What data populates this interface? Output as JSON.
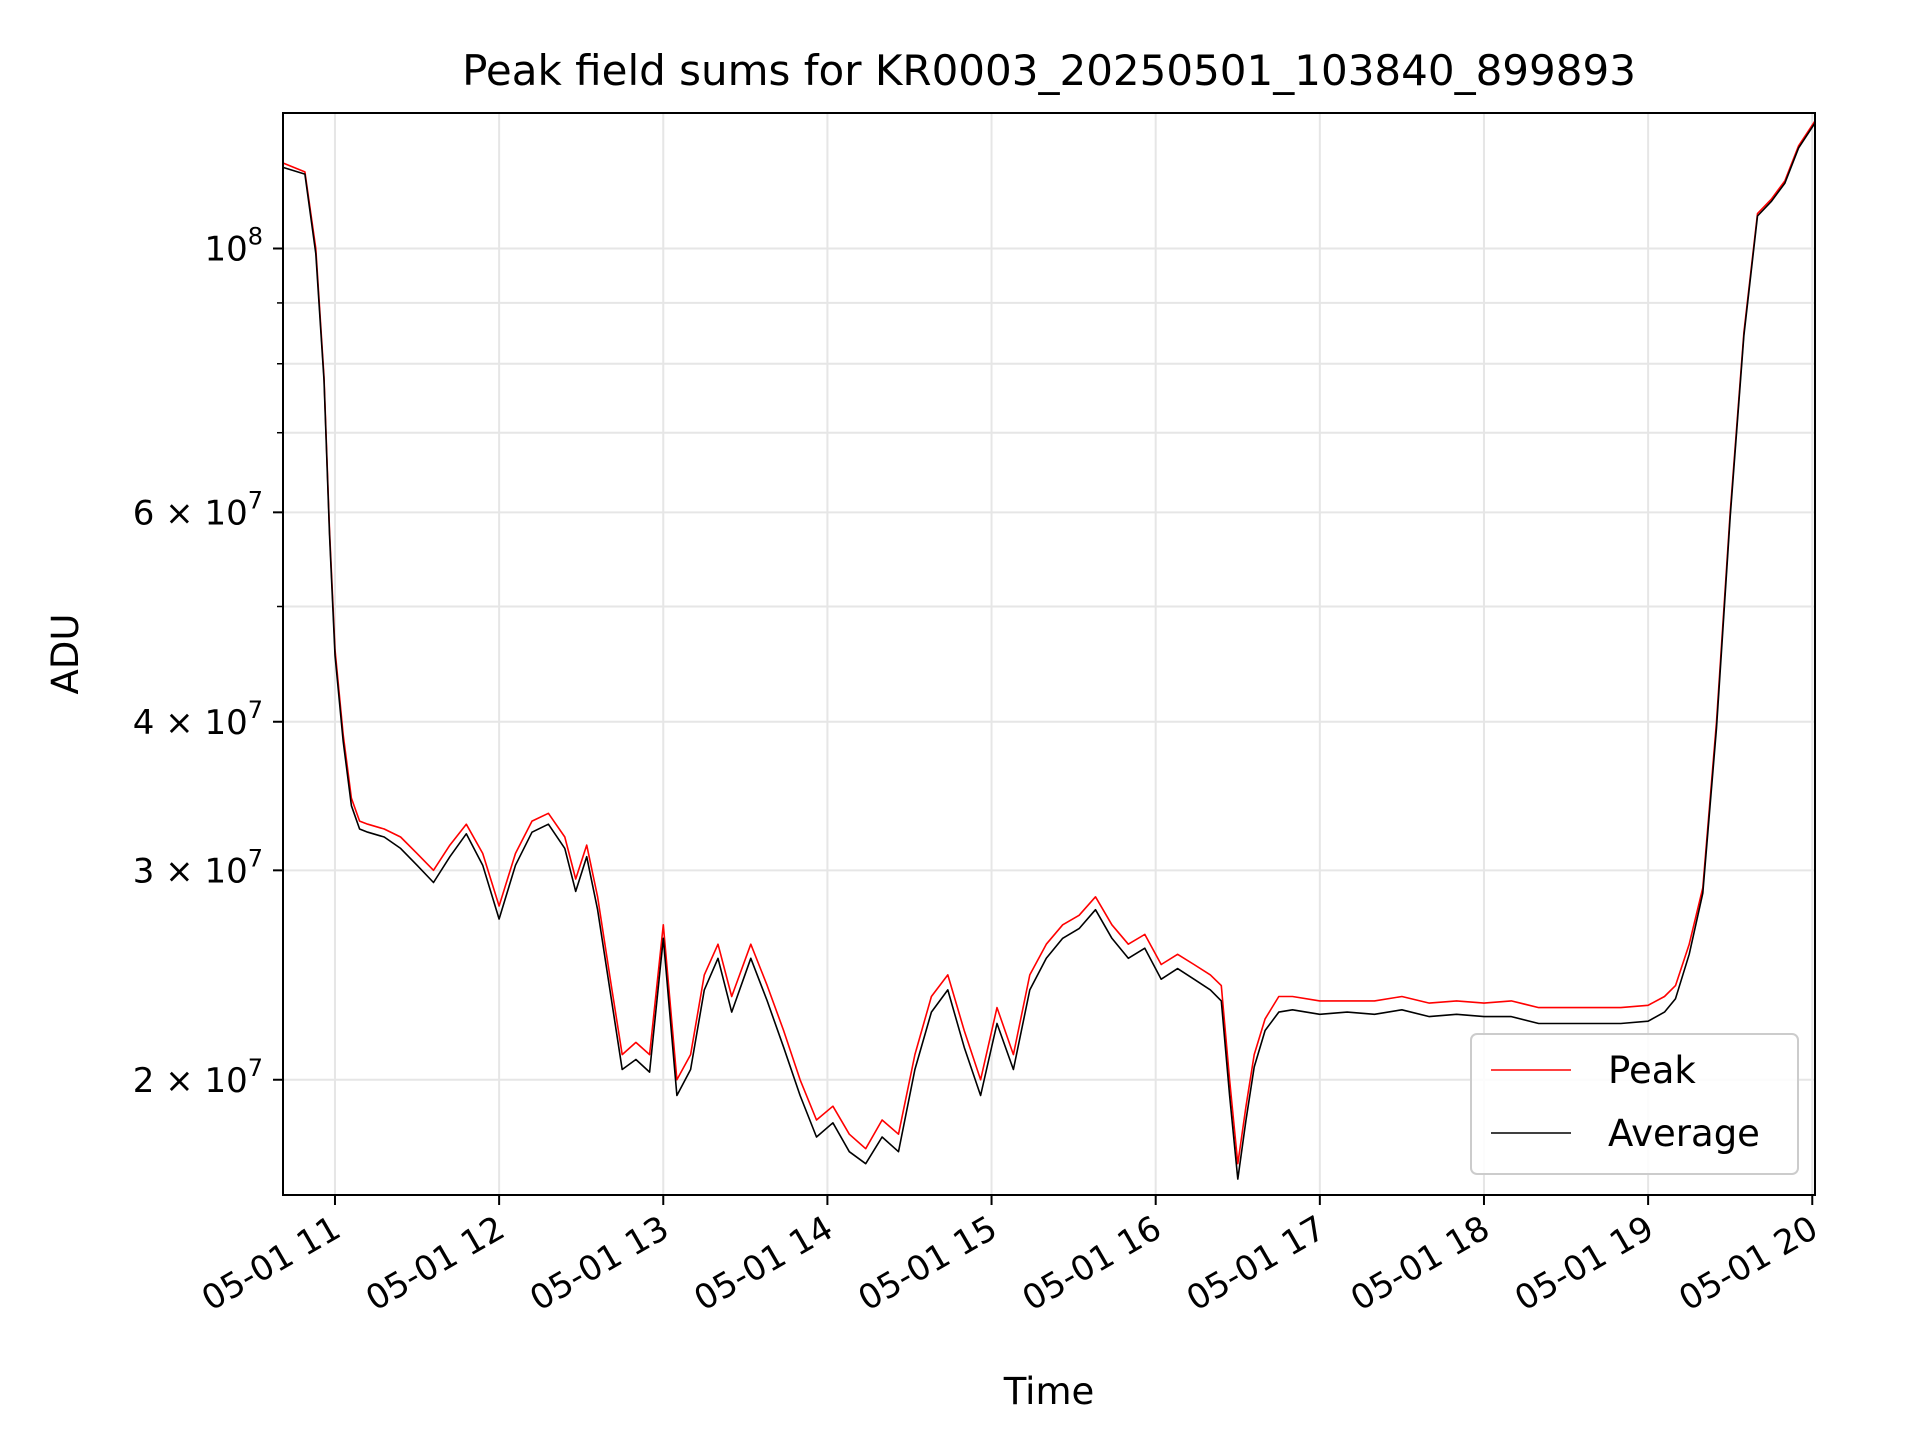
{
  "chart_data": {
    "type": "line",
    "title": "Peak field sums for KR0003_20250501_103840_899893",
    "xlabel": "Time",
    "ylabel": "ADU",
    "yscale": "log",
    "xlim": [
      "2025-05-01 10:41",
      "2025-05-01 20:01"
    ],
    "ylim": [
      16000000,
      130000000
    ],
    "grid": true,
    "legend_position": "lower right",
    "x_ticks": [
      {
        "label": "05-01 11",
        "time": "2025-05-01 11:00"
      },
      {
        "label": "05-01 12",
        "time": "2025-05-01 12:00"
      },
      {
        "label": "05-01 13",
        "time": "2025-05-01 13:00"
      },
      {
        "label": "05-01 14",
        "time": "2025-05-01 14:00"
      },
      {
        "label": "05-01 15",
        "time": "2025-05-01 15:00"
      },
      {
        "label": "05-01 16",
        "time": "2025-05-01 16:00"
      },
      {
        "label": "05-01 17",
        "time": "2025-05-01 17:00"
      },
      {
        "label": "05-01 18",
        "time": "2025-05-01 18:00"
      },
      {
        "label": "05-01 19",
        "time": "2025-05-01 19:00"
      },
      {
        "label": "05-01 20",
        "time": "2025-05-01 20:00"
      }
    ],
    "y_ticks": [
      {
        "base": "2 × 10",
        "exp": "7",
        "value": 20000000
      },
      {
        "base": "3 × 10",
        "exp": "7",
        "value": 30000000
      },
      {
        "base": "4 × 10",
        "exp": "7",
        "value": 40000000
      },
      {
        "base": "6 × 10",
        "exp": "7",
        "value": 60000000
      },
      {
        "base": "10",
        "exp": "8",
        "value": 100000000
      }
    ],
    "y_minor_ticks": [
      50000000,
      70000000,
      80000000,
      90000000
    ],
    "series": [
      {
        "name": "Peak",
        "color": "#ff0000",
        "x": [
          "2025-05-01 10:41",
          "2025-05-01 10:49",
          "2025-05-01 10:53",
          "2025-05-01 10:56",
          "2025-05-01 10:58",
          "2025-05-01 11:00",
          "2025-05-01 11:03",
          "2025-05-01 11:06",
          "2025-05-01 11:09",
          "2025-05-01 11:12",
          "2025-05-01 11:18",
          "2025-05-01 11:24",
          "2025-05-01 11:30",
          "2025-05-01 11:36",
          "2025-05-01 11:42",
          "2025-05-01 11:48",
          "2025-05-01 11:54",
          "2025-05-01 12:00",
          "2025-05-01 12:06",
          "2025-05-01 12:12",
          "2025-05-01 12:18",
          "2025-05-01 12:24",
          "2025-05-01 12:28",
          "2025-05-01 12:32",
          "2025-05-01 12:36",
          "2025-05-01 12:41",
          "2025-05-01 12:45",
          "2025-05-01 12:50",
          "2025-05-01 12:55",
          "2025-05-01 13:00",
          "2025-05-01 13:05",
          "2025-05-01 13:10",
          "2025-05-01 13:15",
          "2025-05-01 13:20",
          "2025-05-01 13:25",
          "2025-05-01 13:32",
          "2025-05-01 13:38",
          "2025-05-01 13:44",
          "2025-05-01 13:50",
          "2025-05-01 13:56",
          "2025-05-01 14:02",
          "2025-05-01 14:08",
          "2025-05-01 14:14",
          "2025-05-01 14:20",
          "2025-05-01 14:26",
          "2025-05-01 14:32",
          "2025-05-01 14:38",
          "2025-05-01 14:44",
          "2025-05-01 14:50",
          "2025-05-01 14:56",
          "2025-05-01 15:02",
          "2025-05-01 15:08",
          "2025-05-01 15:14",
          "2025-05-01 15:20",
          "2025-05-01 15:26",
          "2025-05-01 15:32",
          "2025-05-01 15:38",
          "2025-05-01 15:44",
          "2025-05-01 15:50",
          "2025-05-01 15:56",
          "2025-05-01 16:02",
          "2025-05-01 16:08",
          "2025-05-01 16:14",
          "2025-05-01 16:20",
          "2025-05-01 16:24",
          "2025-05-01 16:27",
          "2025-05-01 16:30",
          "2025-05-01 16:33",
          "2025-05-01 16:36",
          "2025-05-01 16:40",
          "2025-05-01 16:45",
          "2025-05-01 16:50",
          "2025-05-01 17:00",
          "2025-05-01 17:10",
          "2025-05-01 17:20",
          "2025-05-01 17:30",
          "2025-05-01 17:40",
          "2025-05-01 17:50",
          "2025-05-01 18:00",
          "2025-05-01 18:10",
          "2025-05-01 18:20",
          "2025-05-01 18:30",
          "2025-05-01 18:40",
          "2025-05-01 18:50",
          "2025-05-01 19:00",
          "2025-05-01 19:06",
          "2025-05-01 19:10",
          "2025-05-01 19:15",
          "2025-05-01 19:20",
          "2025-05-01 19:25",
          "2025-05-01 19:30",
          "2025-05-01 19:35",
          "2025-05-01 19:40",
          "2025-05-01 19:45",
          "2025-05-01 19:50",
          "2025-05-01 19:55",
          "2025-05-01 20:01"
        ],
        "values": [
          118000000,
          116000000,
          100000000,
          78000000,
          58000000,
          46000000,
          39000000,
          34500000,
          33000000,
          32800000,
          32500000,
          32000000,
          31000000,
          30000000,
          31500000,
          32800000,
          31000000,
          28000000,
          31000000,
          33000000,
          33500000,
          32000000,
          29500000,
          31500000,
          28500000,
          24000000,
          21000000,
          21500000,
          21000000,
          27000000,
          20000000,
          21000000,
          24500000,
          26000000,
          23500000,
          26000000,
          24000000,
          22000000,
          20000000,
          18500000,
          19000000,
          18000000,
          17500000,
          18500000,
          18000000,
          21000000,
          23500000,
          24500000,
          22000000,
          20000000,
          23000000,
          21000000,
          24500000,
          26000000,
          27000000,
          27500000,
          28500000,
          27000000,
          26000000,
          26500000,
          25000000,
          25500000,
          25000000,
          24500000,
          24000000,
          20000000,
          17000000,
          19000000,
          21000000,
          22500000,
          23500000,
          23500000,
          23300000,
          23300000,
          23300000,
          23500000,
          23200000,
          23300000,
          23200000,
          23300000,
          23000000,
          23000000,
          23000000,
          23000000,
          23100000,
          23500000,
          24000000,
          26000000,
          29000000,
          40000000,
          60000000,
          85000000,
          107000000,
          110000000,
          114000000,
          122000000,
          128000000
        ]
      },
      {
        "name": "Average",
        "color": "#000000",
        "x": [
          "2025-05-01 10:41",
          "2025-05-01 10:49",
          "2025-05-01 10:53",
          "2025-05-01 10:56",
          "2025-05-01 10:58",
          "2025-05-01 11:00",
          "2025-05-01 11:03",
          "2025-05-01 11:06",
          "2025-05-01 11:09",
          "2025-05-01 11:12",
          "2025-05-01 11:18",
          "2025-05-01 11:24",
          "2025-05-01 11:30",
          "2025-05-01 11:36",
          "2025-05-01 11:42",
          "2025-05-01 11:48",
          "2025-05-01 11:54",
          "2025-05-01 12:00",
          "2025-05-01 12:06",
          "2025-05-01 12:12",
          "2025-05-01 12:18",
          "2025-05-01 12:24",
          "2025-05-01 12:28",
          "2025-05-01 12:32",
          "2025-05-01 12:36",
          "2025-05-01 12:41",
          "2025-05-01 12:45",
          "2025-05-01 12:50",
          "2025-05-01 12:55",
          "2025-05-01 13:00",
          "2025-05-01 13:05",
          "2025-05-01 13:10",
          "2025-05-01 13:15",
          "2025-05-01 13:20",
          "2025-05-01 13:25",
          "2025-05-01 13:32",
          "2025-05-01 13:38",
          "2025-05-01 13:44",
          "2025-05-01 13:50",
          "2025-05-01 13:56",
          "2025-05-01 14:02",
          "2025-05-01 14:08",
          "2025-05-01 14:14",
          "2025-05-01 14:20",
          "2025-05-01 14:26",
          "2025-05-01 14:32",
          "2025-05-01 14:38",
          "2025-05-01 14:44",
          "2025-05-01 14:50",
          "2025-05-01 14:56",
          "2025-05-01 15:02",
          "2025-05-01 15:08",
          "2025-05-01 15:14",
          "2025-05-01 15:20",
          "2025-05-01 15:26",
          "2025-05-01 15:32",
          "2025-05-01 15:38",
          "2025-05-01 15:44",
          "2025-05-01 15:50",
          "2025-05-01 15:56",
          "2025-05-01 16:02",
          "2025-05-01 16:08",
          "2025-05-01 16:14",
          "2025-05-01 16:20",
          "2025-05-01 16:24",
          "2025-05-01 16:27",
          "2025-05-01 16:30",
          "2025-05-01 16:33",
          "2025-05-01 16:36",
          "2025-05-01 16:40",
          "2025-05-01 16:45",
          "2025-05-01 16:50",
          "2025-05-01 17:00",
          "2025-05-01 17:10",
          "2025-05-01 17:20",
          "2025-05-01 17:30",
          "2025-05-01 17:40",
          "2025-05-01 17:50",
          "2025-05-01 18:00",
          "2025-05-01 18:10",
          "2025-05-01 18:20",
          "2025-05-01 18:30",
          "2025-05-01 18:40",
          "2025-05-01 18:50",
          "2025-05-01 19:00",
          "2025-05-01 19:06",
          "2025-05-01 19:10",
          "2025-05-01 19:15",
          "2025-05-01 19:20",
          "2025-05-01 19:25",
          "2025-05-01 19:30",
          "2025-05-01 19:35",
          "2025-05-01 19:40",
          "2025-05-01 19:45",
          "2025-05-01 19:50",
          "2025-05-01 19:55",
          "2025-05-01 20:01"
        ],
        "values": [
          117000000,
          115500000,
          99000000,
          77500000,
          57500000,
          45500000,
          38500000,
          34000000,
          32500000,
          32300000,
          32000000,
          31300000,
          30300000,
          29300000,
          30800000,
          32200000,
          30300000,
          27300000,
          30300000,
          32300000,
          32800000,
          31300000,
          28800000,
          30800000,
          27800000,
          23400000,
          20400000,
          20800000,
          20300000,
          26300000,
          19400000,
          20400000,
          23800000,
          25300000,
          22800000,
          25300000,
          23300000,
          21300000,
          19400000,
          17900000,
          18400000,
          17400000,
          17000000,
          17900000,
          17400000,
          20400000,
          22800000,
          23800000,
          21300000,
          19400000,
          22300000,
          20400000,
          23800000,
          25300000,
          26300000,
          26800000,
          27800000,
          26300000,
          25300000,
          25800000,
          24300000,
          24800000,
          24300000,
          23800000,
          23300000,
          19400000,
          16500000,
          18500000,
          20500000,
          22000000,
          22800000,
          22900000,
          22700000,
          22800000,
          22700000,
          22900000,
          22600000,
          22700000,
          22600000,
          22600000,
          22300000,
          22300000,
          22300000,
          22300000,
          22400000,
          22800000,
          23400000,
          25500000,
          28700000,
          39500000,
          59500000,
          84500000,
          106500000,
          109500000,
          113500000,
          121500000,
          127500000
        ]
      }
    ]
  }
}
